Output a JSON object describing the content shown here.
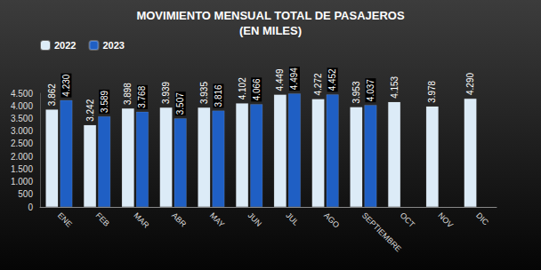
{
  "chart_data": {
    "type": "bar",
    "title": "MOVIMIENTO MENSUAL TOTAL DE PASAJEROS\n(EN MILES)",
    "categories": [
      "ENE",
      "FEB",
      "MAR",
      "ABR",
      "MAY",
      "JUN",
      "JUL",
      "AGO",
      "SEPTIEMBRE",
      "OCT",
      "NOV",
      "DIC"
    ],
    "series": [
      {
        "name": "2022",
        "color": "#dcebf7",
        "values": [
          3862,
          3242,
          3898,
          3939,
          3935,
          4102,
          4449,
          4272,
          3953,
          4153,
          3978,
          4290
        ],
        "value_labels": [
          "3.862",
          "3.242",
          "3.898",
          "3.939",
          "3.935",
          "4.102",
          "4.449",
          "4.272",
          "3.953",
          "4.153",
          "3.978",
          "4.290"
        ]
      },
      {
        "name": "2023",
        "color": "#1f5fc4",
        "values": [
          4230,
          3589,
          3768,
          3507,
          3816,
          4066,
          4494,
          4452,
          4037,
          null,
          null,
          null
        ],
        "value_labels": [
          "4.230",
          "3.589",
          "3.768",
          "3.507",
          "3.816",
          "4.066",
          "4.494",
          "4.452",
          "4.037",
          null,
          null,
          null
        ]
      }
    ],
    "ylim": [
      0,
      4500
    ],
    "yticks": [
      0,
      500,
      {
        "value": 1000,
        "label": "1.000"
      },
      {
        "value": 1500,
        "label": "1.500"
      },
      {
        "value": 2000,
        "label": "2.000"
      },
      {
        "value": 2500,
        "label": "2.500"
      },
      {
        "value": 3000,
        "label": "3.000"
      },
      {
        "value": 3500,
        "label": "3.500"
      },
      {
        "value": 4000,
        "label": "4.000"
      },
      {
        "value": 4500,
        "label": "4.500"
      }
    ],
    "grid": false,
    "legend": "top-left",
    "data_labels": true
  }
}
